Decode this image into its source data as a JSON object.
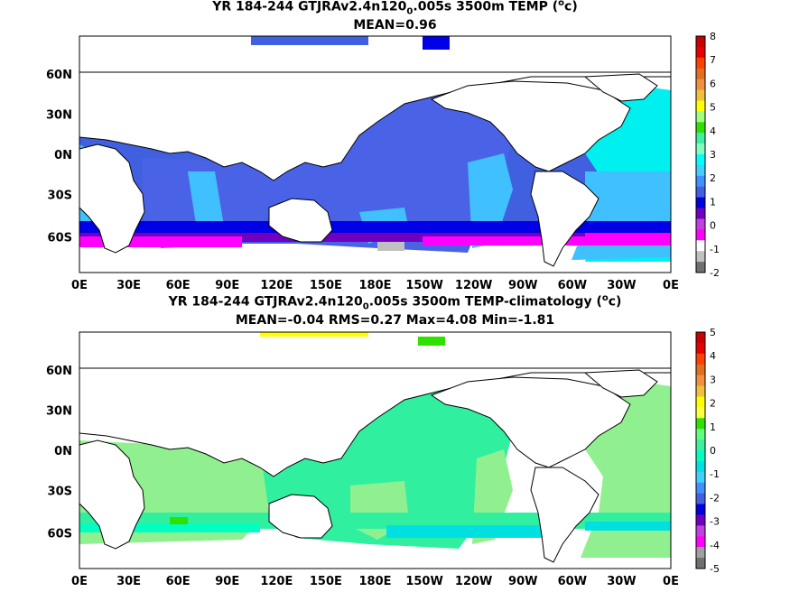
{
  "panels": [
    {
      "title": "YR 184-244 GTJRAv2.4n120",
      "title_sub": "0",
      "title_rest": ".005s 3500m TEMP (",
      "title_sup": "o",
      "title_end": "c)",
      "stats": "MEAN=0.96",
      "colorbar_labels": [
        "8",
        "7",
        "6",
        "5",
        "4",
        "3",
        "2",
        "1",
        "0",
        "-1",
        "-2"
      ],
      "colorbar_colors": [
        "#c80000",
        "#e60000",
        "#ff4000",
        "#e07020",
        "#f09040",
        "#f0c040",
        "#ffff00",
        "#a0ff80",
        "#30e000",
        "#40f0a0",
        "#80ffc0",
        "#00ffff",
        "#40d0ff",
        "#4090ff",
        "#4060e0",
        "#0000e0",
        "#7000c0",
        "#c040e0",
        "#ff00ff",
        "#ffffff",
        "#c0c0c0",
        "#707070"
      ]
    },
    {
      "title": "YR 184-244 GTJRAv2.4n120",
      "title_sub": "0",
      "title_rest": ".005s 3500m TEMP-climatology (",
      "title_sup": "o",
      "title_end": "c)",
      "stats": "MEAN=-0.04   RMS=0.27   Max=4.08   Min=-1.81",
      "colorbar_labels": [
        "5",
        "4",
        "3",
        "2",
        "1",
        "0",
        "-1",
        "-2",
        "-3",
        "-4",
        "-5"
      ],
      "colorbar_colors": [
        "#c80000",
        "#e60000",
        "#ff4000",
        "#e07020",
        "#f09040",
        "#f0c040",
        "#ffff00",
        "#ffff40",
        "#30e000",
        "#60ff80",
        "#40f0a0",
        "#00ffc0",
        "#00e0e0",
        "#40d0ff",
        "#4090ff",
        "#4060e0",
        "#0000e0",
        "#7000c0",
        "#c040e0",
        "#ff00ff",
        "#a0a0a0",
        "#707070"
      ]
    }
  ],
  "lon_labels": [
    "0E",
    "30E",
    "60E",
    "90E",
    "120E",
    "150E",
    "180E",
    "150W",
    "120W",
    "90W",
    "60W",
    "30W",
    "0E"
  ],
  "lat_labels": [
    "60N",
    "30N",
    "0N",
    "30S",
    "60S"
  ]
}
